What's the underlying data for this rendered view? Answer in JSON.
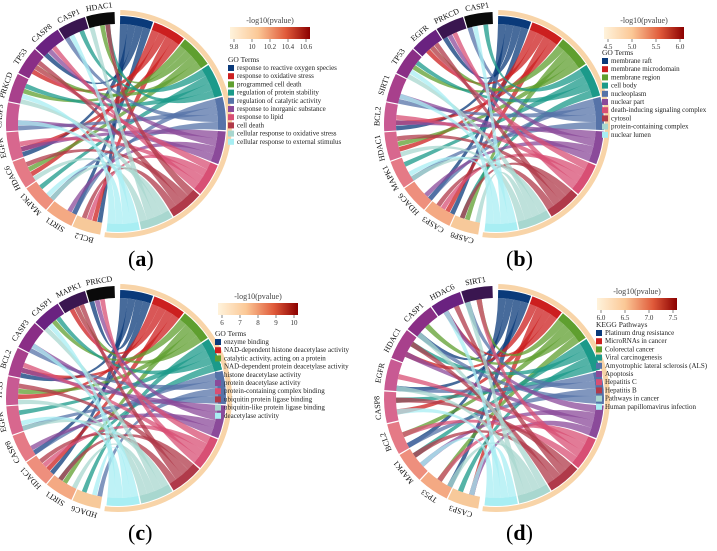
{
  "panels": [
    {
      "id": "a",
      "label": "a",
      "colorbar": {
        "title": "-log10(pvalue)",
        "ticks": [
          "9.8",
          "10",
          "10.2",
          "10.4",
          "10.6"
        ]
      },
      "legend_title": "GO Terms",
      "terms": [
        {
          "name": "response to reactive oxygen species",
          "color": "#0a3a7a"
        },
        {
          "name": "response to oxidative stress",
          "color": "#cc1f1f"
        },
        {
          "name": "programmed cell death",
          "color": "#5f9f2f"
        },
        {
          "name": "regulation of protein stability",
          "color": "#1b9a8a"
        },
        {
          "name": "regulation of catalytic activity",
          "color": "#5673a8"
        },
        {
          "name": "response to inorganic substance",
          "color": "#8b4a9a"
        },
        {
          "name": "response to lipid",
          "color": "#d84f74"
        },
        {
          "name": "cell death",
          "color": "#b03a4a"
        },
        {
          "name": "cellular response to oxidative stress",
          "color": "#a8d7cf"
        },
        {
          "name": "cellular response to external stimulus",
          "color": "#a8eef3"
        }
      ],
      "genes": [
        "BCL2",
        "SIRT1",
        "MAPK1",
        "HDAC6",
        "EGFR",
        "CASP3",
        "PRKCD",
        "TP53",
        "CASP8",
        "CASP1",
        "HDAC1"
      ]
    },
    {
      "id": "b",
      "label": "b",
      "colorbar": {
        "title": "-log10(pvalue)",
        "ticks": [
          "4.5",
          "5.0",
          "5.5",
          "6.0"
        ]
      },
      "legend_title": "GO Terms",
      "terms": [
        {
          "name": "membrane raft",
          "color": "#0a3a7a"
        },
        {
          "name": "membrane microdomain",
          "color": "#cc1f1f"
        },
        {
          "name": "membrane region",
          "color": "#5f9f2f"
        },
        {
          "name": "cell body",
          "color": "#1b9a8a"
        },
        {
          "name": "nucleoplasm",
          "color": "#5673a8"
        },
        {
          "name": "nuclear part",
          "color": "#8b4a9a"
        },
        {
          "name": "death-inducing signaling complex",
          "color": "#d84f74"
        },
        {
          "name": "cytosol",
          "color": "#b03a4a"
        },
        {
          "name": "protein-containing complex",
          "color": "#a8d7cf"
        },
        {
          "name": "nuclear lumen",
          "color": "#a8eef3"
        }
      ],
      "genes": [
        "CASP8",
        "CASP3",
        "HDAC6",
        "MAPK1",
        "HDAC1",
        "BCL2",
        "SIRT1",
        "TP53",
        "EGFR",
        "PRKCD",
        "CASP1"
      ]
    },
    {
      "id": "c",
      "label": "c",
      "colorbar": {
        "title": "-log10(pvalue)",
        "ticks": [
          "6",
          "7",
          "8",
          "9",
          "10"
        ]
      },
      "legend_title": "GO Terms",
      "terms": [
        {
          "name": "enzyme binding",
          "color": "#0a3a7a"
        },
        {
          "name": "NAD-dependent histone deacetylase activity",
          "color": "#cc1f1f"
        },
        {
          "name": "catalytic activity, acting on a protein",
          "color": "#5f9f2f"
        },
        {
          "name": "NAD-dependent protein deacetylase activity",
          "color": "#1b9a8a"
        },
        {
          "name": "histone deacetylase activity",
          "color": "#5673a8"
        },
        {
          "name": "protein deacetylase activity",
          "color": "#8b4a9a"
        },
        {
          "name": "protein-containing complex binding",
          "color": "#d84f74"
        },
        {
          "name": "ubiquitin protein ligase binding",
          "color": "#b03a4a"
        },
        {
          "name": "ubiquitin-like protein ligase binding",
          "color": "#a8d7cf"
        },
        {
          "name": "deacetylase activity",
          "color": "#a8eef3"
        }
      ],
      "genes": [
        "HDAC6",
        "SIRT1",
        "HDAC1",
        "CASP8",
        "EGFR",
        "TP53",
        "BCL2",
        "CASP3",
        "CASP1",
        "MAPK1",
        "PRKCD"
      ]
    },
    {
      "id": "d",
      "label": "d",
      "colorbar": {
        "title": "-log10(pvalue)",
        "ticks": [
          "6.0",
          "6.5",
          "7.0",
          "7.5"
        ]
      },
      "legend_title": "KEGG Pathways",
      "terms": [
        {
          "name": "Platinum drug resistance",
          "color": "#0a3a7a"
        },
        {
          "name": "MicroRNAs in cancer",
          "color": "#cc1f1f"
        },
        {
          "name": "Colorectal cancer",
          "color": "#5f9f2f"
        },
        {
          "name": "Viral carcinogenesis",
          "color": "#1b9a8a"
        },
        {
          "name": "Amyotrophic lateral sclerosis (ALS)",
          "color": "#5673a8"
        },
        {
          "name": "Apoptosis",
          "color": "#8b4a9a"
        },
        {
          "name": "Hepatitis C",
          "color": "#d84f74"
        },
        {
          "name": "Hepatitis B",
          "color": "#b03a4a"
        },
        {
          "name": "Pathways in cancer",
          "color": "#a8d7cf"
        },
        {
          "name": "Human papillomavirus infection",
          "color": "#a8eef3"
        }
      ],
      "genes": [
        "CASP3",
        "TP53",
        "MAPK1",
        "BCL2",
        "CASP8",
        "EGFR",
        "HDAC1",
        "CASP1",
        "HDAC6",
        "SIRT1"
      ]
    }
  ]
}
